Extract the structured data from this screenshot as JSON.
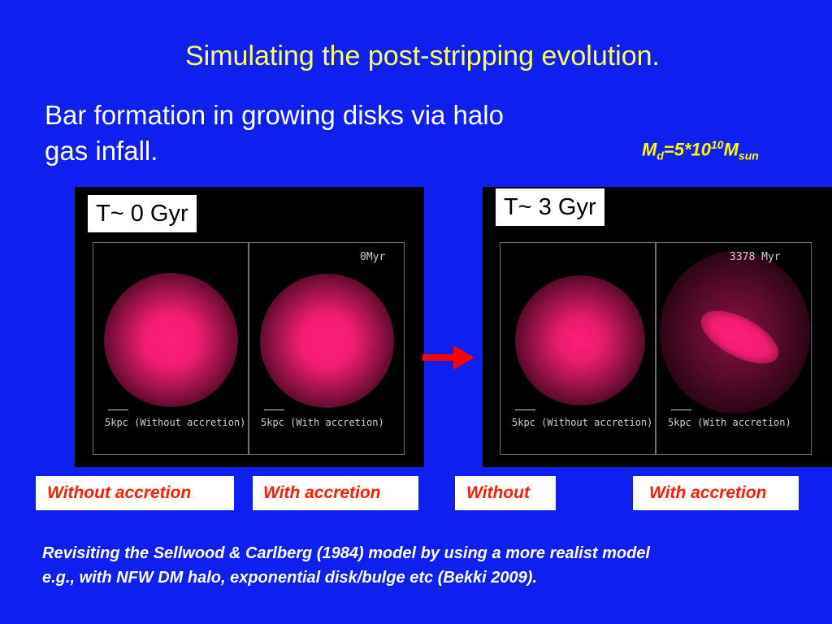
{
  "slide": {
    "title": "Simulating the post-stripping evolution.",
    "subtitle": "Bar formation in growing disks via halo gas infall.",
    "mass": {
      "base": "M",
      "sub": "d",
      "mid": "=5*10",
      "sup": "10",
      "base2": "M",
      "sub2": "sun"
    }
  },
  "panels": {
    "left": {
      "time_label": "T~ 0 Gyr",
      "timestamp": "0Myr",
      "captions": [
        "5kpc (Without accretion)",
        "5kpc (With accretion)"
      ]
    },
    "right": {
      "time_label": "T~ 3 Gyr",
      "timestamp": "3378  Myr",
      "captions": [
        "5kpc (Without accretion)",
        "5kpc (With accretion)"
      ]
    }
  },
  "labels": [
    "Without  accretion",
    "With  accretion",
    "Without",
    "With accretion"
  ],
  "footer": {
    "line1": "Revisiting the Sellwood & Carlberg (1984) model by using a more realist model",
    "line2": "e.g., with NFW DM halo,  exponential disk/bulge etc (Bekki 2009)."
  },
  "colors": {
    "background": "#0f1ff0",
    "title": "#ffff66",
    "accent": "#ff1e00",
    "galaxy": "#ff1e78",
    "arrow": "#ff0000"
  }
}
